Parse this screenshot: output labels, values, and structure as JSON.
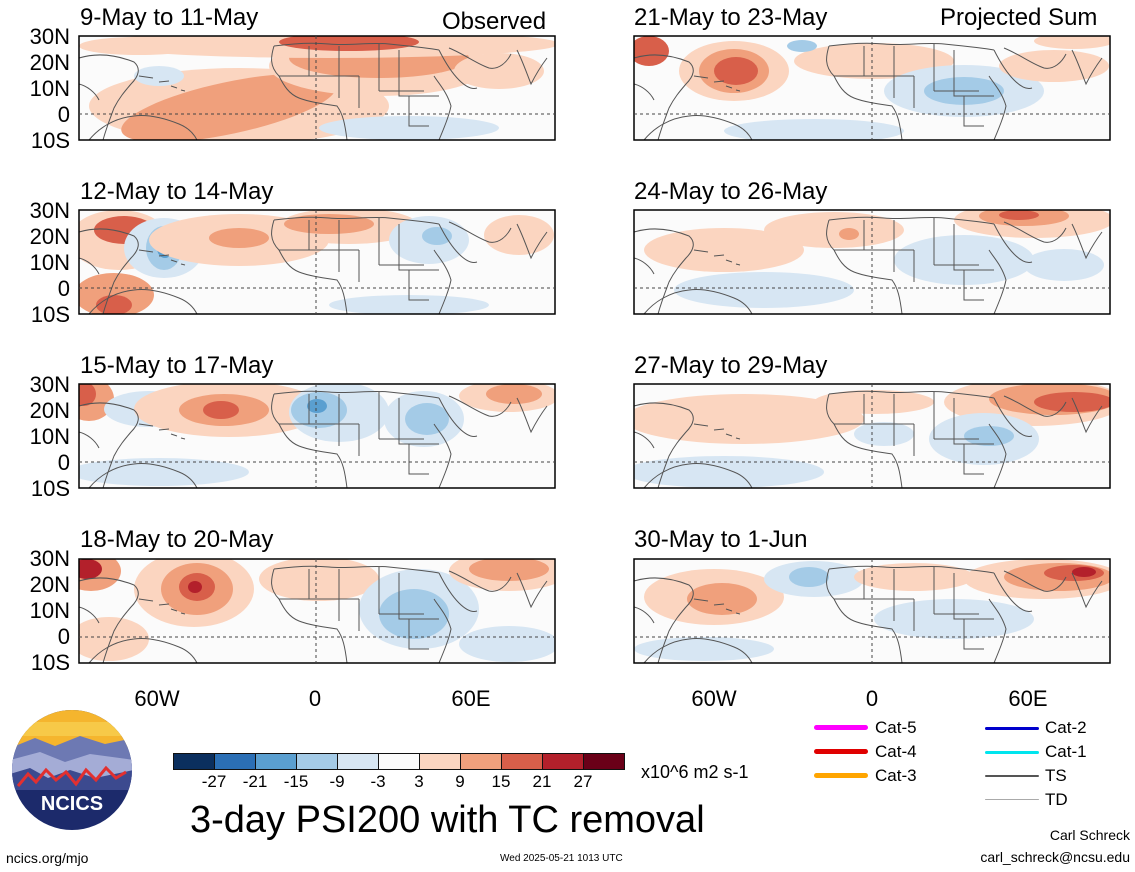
{
  "panels": [
    {
      "title": "9-May to 11-May",
      "note": "Observed"
    },
    {
      "title": "12-May to 14-May",
      "note": ""
    },
    {
      "title": "15-May to 17-May",
      "note": ""
    },
    {
      "title": "18-May to 20-May",
      "note": ""
    },
    {
      "title": "21-May to 23-May",
      "note": "Projected Sum"
    },
    {
      "title": "24-May to 26-May",
      "note": ""
    },
    {
      "title": "27-May to 29-May",
      "note": ""
    },
    {
      "title": "30-May to 1-Jun",
      "note": ""
    }
  ],
  "lat_labels": [
    "30N",
    "20N",
    "10N",
    "0",
    "10S"
  ],
  "lon_labels": [
    "60W",
    "0",
    "60E"
  ],
  "colorbar": {
    "ticks": [
      "-27",
      "-21",
      "-15",
      "-9",
      "-3",
      "3",
      "9",
      "15",
      "21",
      "27"
    ],
    "colors": [
      "#0b2f5e",
      "#2b6fb5",
      "#5a9fd0",
      "#a4cbe7",
      "#d7e6f3",
      "#fbfbfb",
      "#fbd5c0",
      "#f0a07c",
      "#d85f4a",
      "#b3202b",
      "#6a0018"
    ],
    "units": "x10^6 m2 s-1"
  },
  "main_title": "3-day PSI200 with TC removal",
  "logo_text": "NCICS",
  "footer": {
    "url": "ncics.org/mjo",
    "timestamp": "Wed 2025-05-21 1013 UTC",
    "author": "Carl Schreck",
    "email": "carl_schreck@ncsu.edu"
  },
  "legend": [
    {
      "label": "Cat-5",
      "color": "#ff00ff"
    },
    {
      "label": "Cat-4",
      "color": "#e00000"
    },
    {
      "label": "Cat-3",
      "color": "#ffa500"
    },
    {
      "label": "Cat-2",
      "color": "#0000cc"
    },
    {
      "label": "Cat-1",
      "color": "#00e5ee"
    },
    {
      "label": "TS",
      "color": "#555555"
    },
    {
      "label": "TD",
      "color": "#aaaaaa"
    }
  ]
}
